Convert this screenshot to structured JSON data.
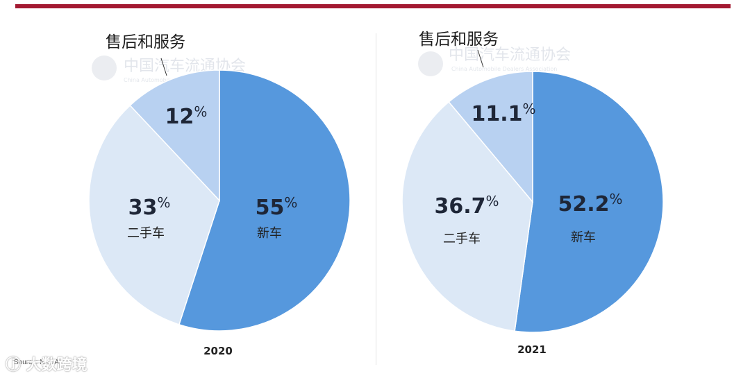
{
  "colors": {
    "accent": "#a31a32",
    "new_car": "#5698dd",
    "used_car": "#dce8f6",
    "after_sales": "#b8d1f1",
    "slice_border": "#ffffff"
  },
  "watermark": {
    "text_cn": "中国汽车流通协会",
    "text_en": "China Automobile Dealers Association"
  },
  "source": "Source: NADA",
  "brand": "ⓙ 大数跨境",
  "chart_data": [
    {
      "type": "pie",
      "title": "2020",
      "slices": [
        {
          "label": "新车",
          "value": 55,
          "value_text": "55",
          "color": "#5698dd"
        },
        {
          "label": "二手车",
          "value": 33,
          "value_text": "33",
          "color": "#dce8f6"
        },
        {
          "label": "售后和服务",
          "value": 12,
          "value_text": "12",
          "color": "#b8d1f1"
        }
      ],
      "unit": "%"
    },
    {
      "type": "pie",
      "title": "2021",
      "slices": [
        {
          "label": "新车",
          "value": 52.2,
          "value_text": "52.2",
          "color": "#5698dd"
        },
        {
          "label": "二手车",
          "value": 36.7,
          "value_text": "36.7",
          "color": "#dce8f6"
        },
        {
          "label": "售后和服务",
          "value": 11.1,
          "value_text": "11.1",
          "color": "#b8d1f1"
        }
      ],
      "unit": "%"
    }
  ]
}
